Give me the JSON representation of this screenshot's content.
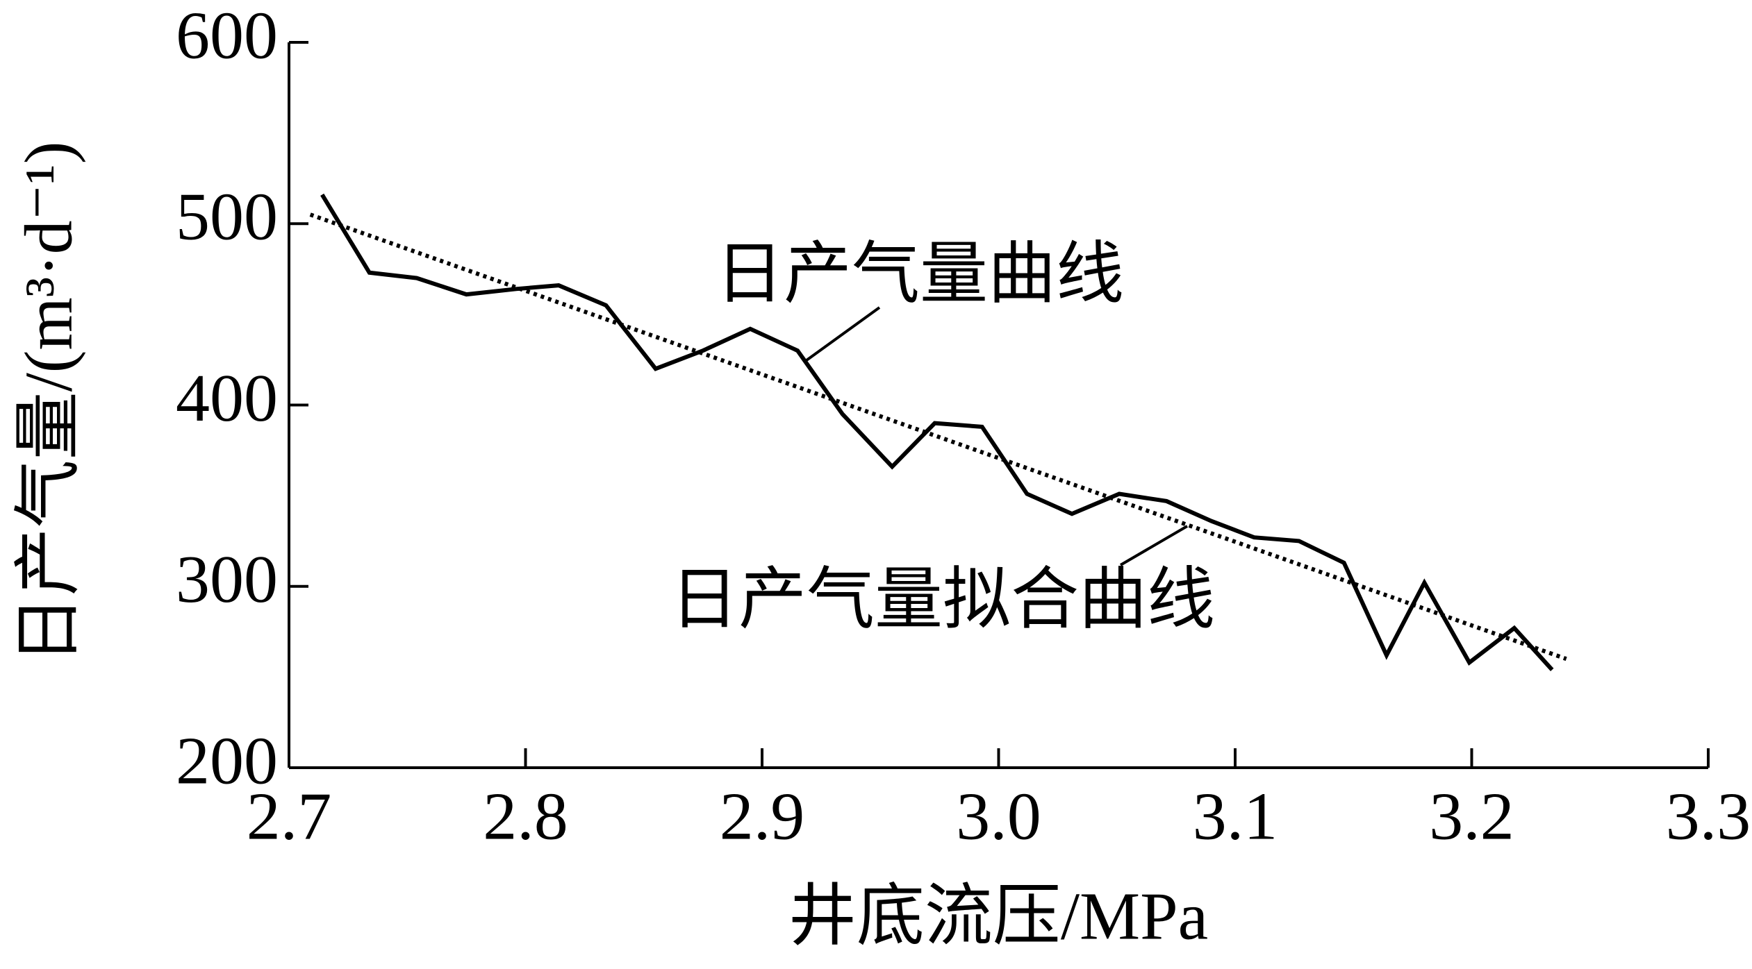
{
  "chart_data": {
    "type": "line",
    "xlabel": "井底流压/MPa",
    "ylabel": "日产气量/(m³·d⁻¹)",
    "xlim": [
      2.7,
      3.3
    ],
    "ylim": [
      200,
      600
    ],
    "xticks": [
      2.7,
      2.8,
      2.9,
      {
        "value": 3,
        "label": "3.0"
      },
      3.1,
      3.2,
      3.3
    ],
    "yticks": [
      200,
      300,
      400,
      500,
      600
    ],
    "series": [
      {
        "name": "日产气量曲线",
        "color": "#000000",
        "style": "solid",
        "x": [
          2.714,
          2.734,
          2.754,
          2.775,
          2.796,
          2.814,
          2.834,
          2.855,
          2.875,
          2.895,
          2.915,
          2.934,
          2.955,
          2.973,
          2.993,
          3.012,
          3.031,
          3.051,
          3.071,
          3.09,
          3.108,
          3.127,
          3.146,
          3.164,
          3.18,
          3.199,
          3.218,
          3.234
        ],
        "values": [
          516,
          473,
          470,
          461,
          464,
          466,
          455,
          420,
          430,
          442,
          430,
          395,
          366,
          390,
          388,
          351,
          340,
          351,
          347,
          336,
          327,
          325,
          313,
          262,
          302,
          258,
          277,
          254
        ]
      },
      {
        "name": "日产气量拟合曲线",
        "color": "#000000",
        "style": "dotted",
        "x": [
          2.709,
          3.24
        ],
        "values": [
          505,
          260
        ]
      }
    ]
  }
}
